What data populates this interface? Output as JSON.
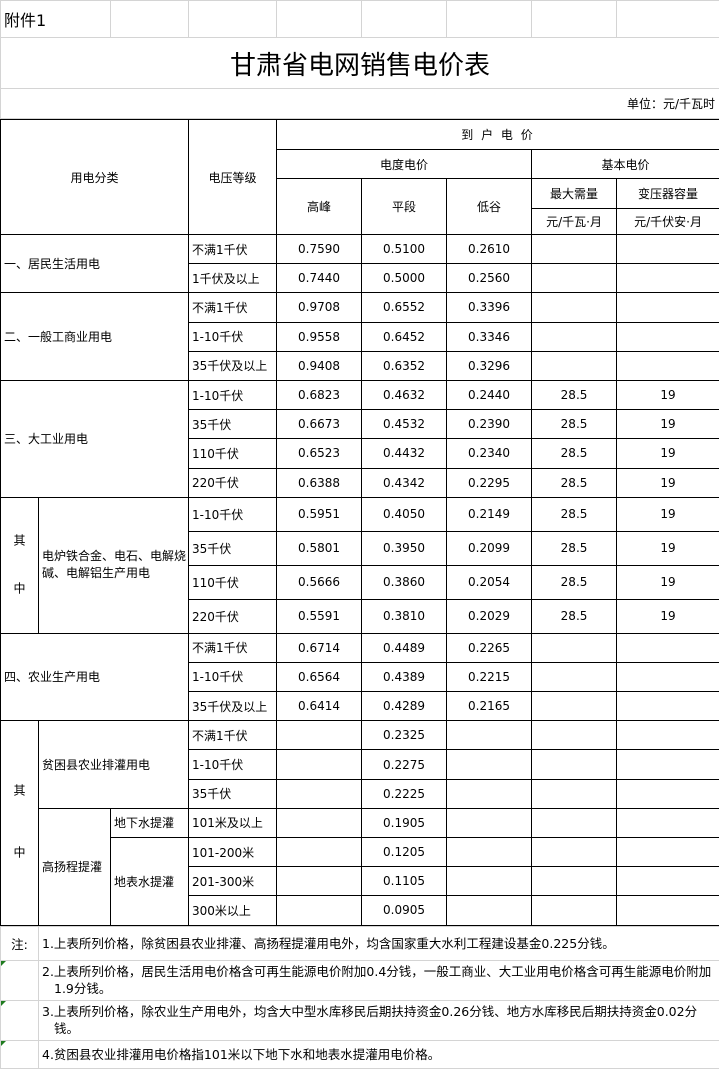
{
  "attachment_label": "附件1",
  "title": "甘肃省电网销售电价表",
  "unit": "单位：元/千瓦时",
  "header": {
    "category": "用电分类",
    "voltage": "电压等级",
    "delivered_price": "到 户 电 价",
    "energy_price": "电度电价",
    "basic_price": "基本电价",
    "peak": "高峰",
    "flat": "平段",
    "valley": "低谷",
    "max_demand": "最大需量",
    "max_demand_unit": "元/千瓦·月",
    "transformer": "变压器容量",
    "transformer_unit": "元/千伏安·月"
  },
  "groups": [
    {
      "label": "一、居民生活用电",
      "rows": [
        [
          "不满1千伏",
          "0.7590",
          "0.5100",
          "0.2610",
          "",
          ""
        ],
        [
          "1千伏及以上",
          "0.7440",
          "0.5000",
          "0.2560",
          "",
          ""
        ]
      ]
    },
    {
      "label": "二、一般工商业用电",
      "rows": [
        [
          "不满1千伏",
          "0.9708",
          "0.6552",
          "0.3396",
          "",
          ""
        ],
        [
          "1-10千伏",
          "0.9558",
          "0.6452",
          "0.3346",
          "",
          ""
        ],
        [
          "35千伏及以上",
          "0.9408",
          "0.6352",
          "0.3296",
          "",
          ""
        ]
      ]
    },
    {
      "label": "三、大工业用电",
      "rows": [
        [
          "1-10千伏",
          "0.6823",
          "0.4632",
          "0.2440",
          "28.5",
          "19"
        ],
        [
          "35千伏",
          "0.6673",
          "0.4532",
          "0.2390",
          "28.5",
          "19"
        ],
        [
          "110千伏",
          "0.6523",
          "0.4432",
          "0.2340",
          "28.5",
          "19"
        ],
        [
          "220千伏",
          "0.6388",
          "0.4342",
          "0.2295",
          "28.5",
          "19"
        ]
      ]
    },
    {
      "prefix": "其中",
      "label": "电炉铁合金、电石、电解烧碱、电解铝生产用电",
      "rows": [
        [
          "1-10千伏",
          "0.5951",
          "0.4050",
          "0.2149",
          "28.5",
          "19"
        ],
        [
          "35千伏",
          "0.5801",
          "0.3950",
          "0.2099",
          "28.5",
          "19"
        ],
        [
          "110千伏",
          "0.5666",
          "0.3860",
          "0.2054",
          "28.5",
          "19"
        ],
        [
          "220千伏",
          "0.5591",
          "0.3810",
          "0.2029",
          "28.5",
          "19"
        ]
      ]
    },
    {
      "label": "四、农业生产用电",
      "rows": [
        [
          "不满1千伏",
          "0.6714",
          "0.4489",
          "0.2265",
          "",
          ""
        ],
        [
          "1-10千伏",
          "0.6564",
          "0.4389",
          "0.2215",
          "",
          ""
        ],
        [
          "35千伏及以上",
          "0.6414",
          "0.4289",
          "0.2165",
          "",
          ""
        ]
      ]
    }
  ],
  "agri_sub": {
    "prefix": "其中",
    "poor_county": {
      "label": "贫困县农业排灌用电",
      "rows": [
        [
          "不满1千伏",
          "",
          "0.2325",
          "",
          "",
          ""
        ],
        [
          "1-10千伏",
          "",
          "0.2275",
          "",
          "",
          ""
        ],
        [
          "35千伏",
          "",
          "0.2225",
          "",
          "",
          ""
        ]
      ]
    },
    "high_lift": {
      "label": "高扬程提灌",
      "groundwater": {
        "label": "地下水提灌",
        "rows": [
          [
            "101米及以上",
            "",
            "0.1905",
            "",
            "",
            ""
          ]
        ]
      },
      "surface": {
        "label": "地表水提灌",
        "rows": [
          [
            "101-200米",
            "",
            "0.1205",
            "",
            "",
            ""
          ],
          [
            "201-300米",
            "",
            "0.1105",
            "",
            "",
            ""
          ],
          [
            "300米以上",
            "",
            "0.0905",
            "",
            "",
            ""
          ]
        ]
      }
    }
  },
  "notes": {
    "label": "注:",
    "items": [
      "1.上表所列价格，除贫困县农业排灌、高扬程提灌用电外，均含国家重大水利工程建设基金0.225分钱。",
      "2.上表所列价格，居民生活用电价格含可再生能源电价附加0.4分钱，一般工商业、大工业用电价格含可再生能源电价附加1.9分钱。",
      "3.上表所列价格，除农业生产用电外，均含大中型水库移民后期扶持资金0.26分钱、地方水库移民后期扶持资金0.02分钱。",
      "4.贫困县农业排灌用电价格指101米以下地下水和地表水提灌用电价格。"
    ]
  }
}
